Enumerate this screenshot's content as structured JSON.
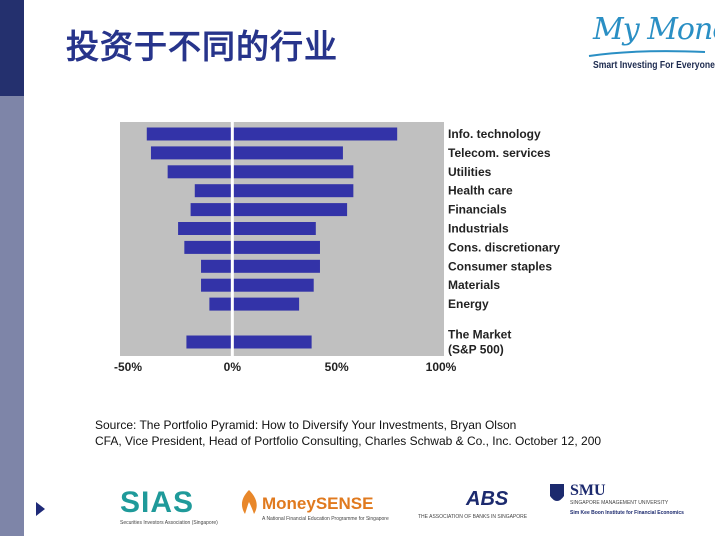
{
  "slide": {
    "title": "投资于不同的行业",
    "source_lines": [
      "Source: The Portfolio Pyramid: How to Diversify Your Investments, Bryan Olson",
      "CFA, Vice President, Head of Portfolio Consulting, Charles Schwab & Co., Inc. October 12, 200"
    ]
  },
  "logo": {
    "script": "My Money",
    "tagline": "Smart Investing For Everyone."
  },
  "chart_data": {
    "type": "bar",
    "orientation": "horizontal",
    "title": "",
    "xlabel": "",
    "ylabel": "",
    "xlim": [
      -50,
      100
    ],
    "xticks": [
      "-50%",
      "0%",
      "50%",
      "100%"
    ],
    "categories": [
      "Info. technology",
      "Telecom. services",
      "Utilities",
      "Health care",
      "Financials",
      "Industrials",
      "Cons. discretionary",
      "Consumer staples",
      "Materials",
      "Energy",
      "The Market (S&P 500)"
    ],
    "category_label_lines": [
      [
        "Info. technology"
      ],
      [
        "Telecom. services"
      ],
      [
        "Utilities"
      ],
      [
        "Health care"
      ],
      [
        "Financials"
      ],
      [
        "Industrials"
      ],
      [
        "Cons. discretionary"
      ],
      [
        "Consumer staples"
      ],
      [
        "Materials"
      ],
      [
        "Energy"
      ],
      [
        "The Market",
        "(S&P 500)"
      ]
    ],
    "low": [
      -41,
      -39,
      -31,
      -18,
      -20,
      -26,
      -23,
      -15,
      -15,
      -11,
      -22
    ],
    "high": [
      79,
      53,
      58,
      58,
      55,
      40,
      42,
      42,
      39,
      32,
      38
    ],
    "grid": false,
    "colors": {
      "bar": "#3333a8",
      "plot_bg": "#c0c0c0",
      "zero_line": "#ffffff"
    }
  },
  "sponsors": {
    "sias": {
      "name": "SIAS",
      "sub": "Securities Investors Association (Singapore)"
    },
    "moneysense": {
      "name": "MoneySENSE",
      "sub": "A National Financial Education Programme for Singapore"
    },
    "abs": {
      "name": "ABS",
      "sub": "THE ASSOCIATION OF BANKS IN SINGAPORE"
    },
    "smu": {
      "name": "SMU",
      "sub1": "SINGAPORE MANAGEMENT UNIVERSITY",
      "sub2": "Sim Kee Boon Institute for Financial Economics"
    }
  }
}
